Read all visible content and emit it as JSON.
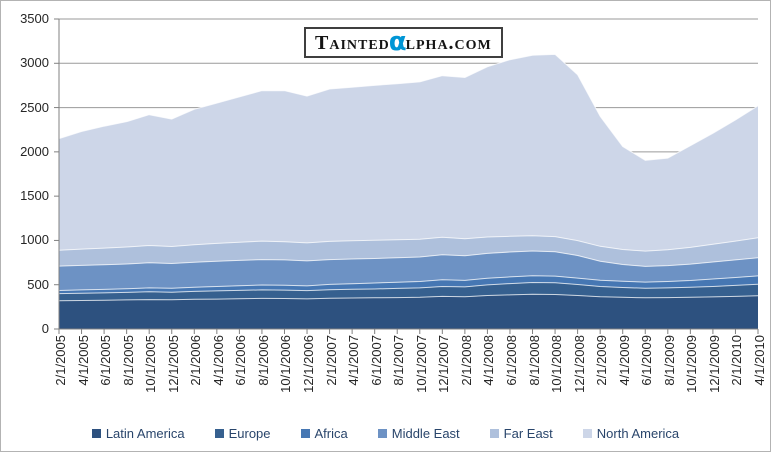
{
  "logo": {
    "part1": "Tainted",
    "alpha": "α",
    "part2": "lpha.com",
    "alpha_color": "#0096d6"
  },
  "chart_data": {
    "type": "area",
    "stacked": true,
    "title": "",
    "xlabel": "",
    "ylabel": "",
    "grid": true,
    "legend_position": "bottom",
    "ylim": [
      0,
      3500
    ],
    "y_ticks": [
      0,
      500,
      1000,
      1500,
      2000,
      2500,
      3000,
      3500
    ],
    "x_labels": [
      "2/1/2005",
      "4/1/2005",
      "6/1/2005",
      "8/1/2005",
      "10/1/2005",
      "12/1/2005",
      "2/1/2006",
      "4/1/2006",
      "6/1/2006",
      "8/1/2006",
      "10/1/2006",
      "12/1/2006",
      "2/1/2007",
      "4/1/2007",
      "6/1/2007",
      "8/1/2007",
      "10/1/2007",
      "12/1/2007",
      "2/1/2008",
      "4/1/2008",
      "6/1/2008",
      "8/1/2008",
      "10/1/2008",
      "12/1/2008",
      "2/1/2009",
      "4/1/2009",
      "6/1/2009",
      "8/1/2009",
      "10/1/2009",
      "12/1/2009",
      "2/1/2010",
      "4/1/2010"
    ],
    "series": [
      {
        "name": "Latin America",
        "color": "#2d517f",
        "values": [
          320,
          322,
          325,
          328,
          332,
          330,
          335,
          338,
          342,
          345,
          344,
          340,
          348,
          350,
          352,
          355,
          358,
          368,
          365,
          378,
          385,
          392,
          390,
          378,
          365,
          358,
          352,
          354,
          358,
          362,
          368,
          375
        ]
      },
      {
        "name": "Europe",
        "color": "#36608f",
        "values": [
          80,
          82,
          83,
          85,
          88,
          86,
          90,
          92,
          94,
          96,
          95,
          93,
          96,
          98,
          100,
          103,
          106,
          112,
          110,
          120,
          128,
          133,
          132,
          124,
          115,
          110,
          108,
          110,
          113,
          118,
          124,
          130
        ]
      },
      {
        "name": "Africa",
        "color": "#4677b3",
        "values": [
          35,
          37,
          39,
          41,
          44,
          43,
          47,
          50,
          53,
          56,
          56,
          54,
          60,
          64,
          67,
          70,
          72,
          76,
          74,
          76,
          75,
          76,
          75,
          73,
          71,
          70,
          69,
          72,
          77,
          84,
          90,
          95
        ]
      },
      {
        "name": "Middle East",
        "color": "#6d92c4",
        "values": [
          275,
          277,
          278,
          280,
          283,
          280,
          282,
          284,
          285,
          287,
          285,
          282,
          280,
          278,
          277,
          276,
          277,
          282,
          278,
          280,
          281,
          280,
          276,
          255,
          215,
          190,
          178,
          180,
          185,
          192,
          198,
          205
        ]
      },
      {
        "name": "Far East",
        "color": "#aec0dc",
        "values": [
          180,
          184,
          188,
          192,
          196,
          193,
          198,
          202,
          205,
          208,
          206,
          203,
          205,
          206,
          205,
          203,
          200,
          198,
          192,
          185,
          178,
          172,
          170,
          168,
          168,
          170,
          172,
          178,
          188,
          200,
          212,
          225
        ]
      },
      {
        "name": "North America",
        "color": "#cdd6e8",
        "values": [
          1260,
          1328,
          1377,
          1414,
          1477,
          1438,
          1528,
          1584,
          1641,
          1698,
          1704,
          1658,
          1721,
          1734,
          1749,
          1763,
          1777,
          1824,
          1821,
          1921,
          1993,
          2037,
          2057,
          1872,
          1466,
          1162,
          1026,
          1036,
          1149,
          1254,
          1368,
          1490
        ]
      }
    ]
  }
}
